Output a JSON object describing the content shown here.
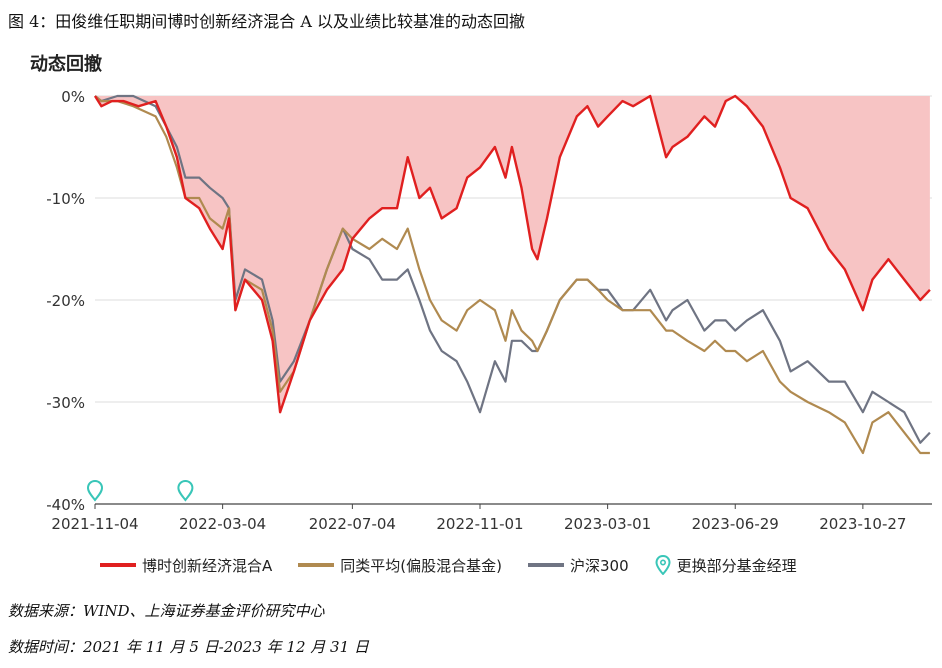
{
  "figure_title": "图 4：田俊维任职期间博时创新经济混合 A 以及业绩比较基准的动态回撤",
  "notes": {
    "source": "数据来源：WIND、上海证券基金评价研究中心",
    "period": "数据时间：2021 年 11 月 5 日-2023 年 12 月 31 日"
  },
  "colors": {
    "fund": "#e02020",
    "peer": "#b08a50",
    "csi300": "#6f7483",
    "fill": "#f7c4c4",
    "marker": "#39c6b8"
  },
  "chart_data": {
    "type": "line",
    "title": "动态回撤",
    "ylim": [
      -40,
      0
    ],
    "yticks": [
      0,
      -10,
      -20,
      -30,
      -40
    ],
    "ytick_labels": [
      "0%",
      "-10%",
      "-20%",
      "-30%",
      "-40%"
    ],
    "xlim": [
      "2021-11-04",
      "2023-12-31"
    ],
    "xticks": [
      "2021-11-04",
      "2022-03-04",
      "2022-07-04",
      "2022-11-01",
      "2023-03-01",
      "2023-06-29",
      "2023-10-27"
    ],
    "legend_position": "bottom",
    "series": [
      {
        "name": "博时创新经济混合A",
        "style": "line-with-fill",
        "points": [
          [
            "2021-11-04",
            0
          ],
          [
            "2021-11-10",
            -1
          ],
          [
            "2021-11-20",
            -0.5
          ],
          [
            "2021-12-01",
            -0.5
          ],
          [
            "2021-12-15",
            -1
          ],
          [
            "2021-12-31",
            -0.5
          ],
          [
            "2022-01-10",
            -3
          ],
          [
            "2022-01-20",
            -6
          ],
          [
            "2022-01-28",
            -10
          ],
          [
            "2022-02-10",
            -11
          ],
          [
            "2022-02-20",
            -13
          ],
          [
            "2022-03-04",
            -15
          ],
          [
            "2022-03-10",
            -12
          ],
          [
            "2022-03-16",
            -21
          ],
          [
            "2022-03-25",
            -18
          ],
          [
            "2022-04-10",
            -20
          ],
          [
            "2022-04-20",
            -24
          ],
          [
            "2022-04-27",
            -31
          ],
          [
            "2022-05-10",
            -27
          ],
          [
            "2022-05-25",
            -22
          ],
          [
            "2022-06-10",
            -19
          ],
          [
            "2022-06-25",
            -17
          ],
          [
            "2022-07-04",
            -14
          ],
          [
            "2022-07-20",
            -12
          ],
          [
            "2022-08-01",
            -11
          ],
          [
            "2022-08-15",
            -11
          ],
          [
            "2022-08-25",
            -6
          ],
          [
            "2022-09-05",
            -10
          ],
          [
            "2022-09-15",
            -9
          ],
          [
            "2022-09-26",
            -12
          ],
          [
            "2022-10-10",
            -11
          ],
          [
            "2022-10-20",
            -8
          ],
          [
            "2022-11-01",
            -7
          ],
          [
            "2022-11-15",
            -5
          ],
          [
            "2022-11-25",
            -8
          ],
          [
            "2022-12-01",
            -5
          ],
          [
            "2022-12-10",
            -9
          ],
          [
            "2022-12-20",
            -15
          ],
          [
            "2022-12-25",
            -16
          ],
          [
            "2023-01-03",
            -12
          ],
          [
            "2023-01-15",
            -6
          ],
          [
            "2023-01-31",
            -2
          ],
          [
            "2023-02-10",
            -1
          ],
          [
            "2023-02-20",
            -3
          ],
          [
            "2023-03-01",
            -2
          ],
          [
            "2023-03-15",
            -0.5
          ],
          [
            "2023-03-25",
            -1
          ],
          [
            "2023-04-10",
            0
          ],
          [
            "2023-04-25",
            -6
          ],
          [
            "2023-05-01",
            -5
          ],
          [
            "2023-05-15",
            -4
          ],
          [
            "2023-05-31",
            -2
          ],
          [
            "2023-06-10",
            -3
          ],
          [
            "2023-06-20",
            -0.5
          ],
          [
            "2023-06-29",
            0
          ],
          [
            "2023-07-10",
            -1
          ],
          [
            "2023-07-25",
            -3
          ],
          [
            "2023-08-10",
            -7
          ],
          [
            "2023-08-20",
            -10
          ],
          [
            "2023-09-05",
            -11
          ],
          [
            "2023-09-25",
            -15
          ],
          [
            "2023-10-10",
            -17
          ],
          [
            "2023-10-27",
            -21
          ],
          [
            "2023-11-05",
            -18
          ],
          [
            "2023-11-20",
            -16
          ],
          [
            "2023-12-05",
            -18
          ],
          [
            "2023-12-20",
            -20
          ],
          [
            "2023-12-29",
            -19
          ]
        ]
      },
      {
        "name": "同类平均(偏股混合基金)",
        "style": "line",
        "points": [
          [
            "2021-11-04",
            0
          ],
          [
            "2021-11-10",
            -0.5
          ],
          [
            "2021-11-25",
            -0.5
          ],
          [
            "2021-12-10",
            -1
          ],
          [
            "2021-12-31",
            -2
          ],
          [
            "2022-01-10",
            -4
          ],
          [
            "2022-01-20",
            -7
          ],
          [
            "2022-01-28",
            -10
          ],
          [
            "2022-02-10",
            -10
          ],
          [
            "2022-02-20",
            -12
          ],
          [
            "2022-03-04",
            -13
          ],
          [
            "2022-03-10",
            -11
          ],
          [
            "2022-03-16",
            -21
          ],
          [
            "2022-03-25",
            -18
          ],
          [
            "2022-04-10",
            -19
          ],
          [
            "2022-04-20",
            -23
          ],
          [
            "2022-04-27",
            -29
          ],
          [
            "2022-05-10",
            -27
          ],
          [
            "2022-05-25",
            -22
          ],
          [
            "2022-06-10",
            -17
          ],
          [
            "2022-06-25",
            -13
          ],
          [
            "2022-07-04",
            -14
          ],
          [
            "2022-07-20",
            -15
          ],
          [
            "2022-08-01",
            -14
          ],
          [
            "2022-08-15",
            -15
          ],
          [
            "2022-08-25",
            -13
          ],
          [
            "2022-09-05",
            -17
          ],
          [
            "2022-09-15",
            -20
          ],
          [
            "2022-09-26",
            -22
          ],
          [
            "2022-10-10",
            -23
          ],
          [
            "2022-10-20",
            -21
          ],
          [
            "2022-11-01",
            -20
          ],
          [
            "2022-11-15",
            -21
          ],
          [
            "2022-11-25",
            -24
          ],
          [
            "2022-12-01",
            -21
          ],
          [
            "2022-12-10",
            -23
          ],
          [
            "2022-12-20",
            -24
          ],
          [
            "2022-12-25",
            -25
          ],
          [
            "2023-01-03",
            -23
          ],
          [
            "2023-01-15",
            -20
          ],
          [
            "2023-01-31",
            -18
          ],
          [
            "2023-02-10",
            -18
          ],
          [
            "2023-02-20",
            -19
          ],
          [
            "2023-03-01",
            -20
          ],
          [
            "2023-03-15",
            -21
          ],
          [
            "2023-03-25",
            -21
          ],
          [
            "2023-04-10",
            -21
          ],
          [
            "2023-04-25",
            -23
          ],
          [
            "2023-05-01",
            -23
          ],
          [
            "2023-05-15",
            -24
          ],
          [
            "2023-05-31",
            -25
          ],
          [
            "2023-06-10",
            -24
          ],
          [
            "2023-06-20",
            -25
          ],
          [
            "2023-06-29",
            -25
          ],
          [
            "2023-07-10",
            -26
          ],
          [
            "2023-07-25",
            -25
          ],
          [
            "2023-08-10",
            -28
          ],
          [
            "2023-08-20",
            -29
          ],
          [
            "2023-09-05",
            -30
          ],
          [
            "2023-09-25",
            -31
          ],
          [
            "2023-10-10",
            -32
          ],
          [
            "2023-10-27",
            -35
          ],
          [
            "2023-11-05",
            -32
          ],
          [
            "2023-11-20",
            -31
          ],
          [
            "2023-12-05",
            -33
          ],
          [
            "2023-12-20",
            -35
          ],
          [
            "2023-12-29",
            -35
          ]
        ]
      },
      {
        "name": "沪深300",
        "style": "line",
        "points": [
          [
            "2021-11-04",
            0
          ],
          [
            "2021-11-10",
            -0.5
          ],
          [
            "2021-11-25",
            0
          ],
          [
            "2021-12-10",
            0
          ],
          [
            "2021-12-31",
            -1
          ],
          [
            "2022-01-10",
            -3
          ],
          [
            "2022-01-20",
            -5
          ],
          [
            "2022-01-28",
            -8
          ],
          [
            "2022-02-10",
            -8
          ],
          [
            "2022-02-20",
            -9
          ],
          [
            "2022-03-04",
            -10
          ],
          [
            "2022-03-10",
            -11
          ],
          [
            "2022-03-16",
            -20
          ],
          [
            "2022-03-25",
            -17
          ],
          [
            "2022-04-10",
            -18
          ],
          [
            "2022-04-20",
            -22
          ],
          [
            "2022-04-27",
            -28
          ],
          [
            "2022-05-10",
            -26
          ],
          [
            "2022-05-25",
            -22
          ],
          [
            "2022-06-10",
            -17
          ],
          [
            "2022-06-25",
            -13
          ],
          [
            "2022-07-04",
            -15
          ],
          [
            "2022-07-20",
            -16
          ],
          [
            "2022-08-01",
            -18
          ],
          [
            "2022-08-15",
            -18
          ],
          [
            "2022-08-25",
            -17
          ],
          [
            "2022-09-05",
            -20
          ],
          [
            "2022-09-15",
            -23
          ],
          [
            "2022-09-26",
            -25
          ],
          [
            "2022-10-10",
            -26
          ],
          [
            "2022-10-20",
            -28
          ],
          [
            "2022-11-01",
            -31
          ],
          [
            "2022-11-15",
            -26
          ],
          [
            "2022-11-25",
            -28
          ],
          [
            "2022-12-01",
            -24
          ],
          [
            "2022-12-10",
            -24
          ],
          [
            "2022-12-20",
            -25
          ],
          [
            "2022-12-25",
            -25
          ],
          [
            "2023-01-03",
            -23
          ],
          [
            "2023-01-15",
            -20
          ],
          [
            "2023-01-31",
            -18
          ],
          [
            "2023-02-10",
            -18
          ],
          [
            "2023-02-20",
            -19
          ],
          [
            "2023-03-01",
            -19
          ],
          [
            "2023-03-15",
            -21
          ],
          [
            "2023-03-25",
            -21
          ],
          [
            "2023-04-10",
            -19
          ],
          [
            "2023-04-25",
            -22
          ],
          [
            "2023-05-01",
            -21
          ],
          [
            "2023-05-15",
            -20
          ],
          [
            "2023-05-31",
            -23
          ],
          [
            "2023-06-10",
            -22
          ],
          [
            "2023-06-20",
            -22
          ],
          [
            "2023-06-29",
            -23
          ],
          [
            "2023-07-10",
            -22
          ],
          [
            "2023-07-25",
            -21
          ],
          [
            "2023-08-10",
            -24
          ],
          [
            "2023-08-20",
            -27
          ],
          [
            "2023-09-05",
            -26
          ],
          [
            "2023-09-25",
            -28
          ],
          [
            "2023-10-10",
            -28
          ],
          [
            "2023-10-27",
            -31
          ],
          [
            "2023-11-05",
            -29
          ],
          [
            "2023-11-20",
            -30
          ],
          [
            "2023-12-05",
            -31
          ],
          [
            "2023-12-20",
            -34
          ],
          [
            "2023-12-29",
            -33
          ]
        ]
      }
    ],
    "markers": {
      "name": "更换部分基金经理",
      "style": "pin",
      "dates": [
        "2021-11-04",
        "2022-01-28"
      ]
    }
  }
}
